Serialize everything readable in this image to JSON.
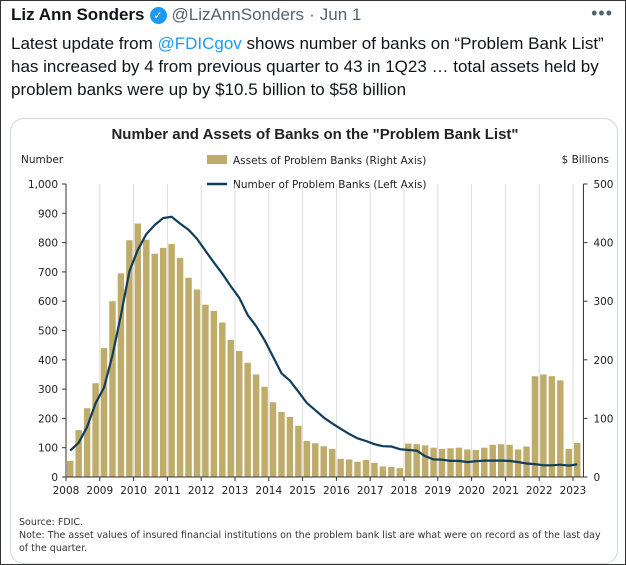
{
  "tweet": {
    "author_name": "Liz Ann Sonders",
    "verified_icon": "verified-badge-icon",
    "handle": "@LizAnnSonders",
    "separator": "·",
    "date": "Jun 1",
    "more_icon": "more-horizontal-icon",
    "text_before": "Latest update from ",
    "mention": "@FDICgov",
    "text_after": " shows number of banks on “Problem Bank List” has increased by 4 from previous quarter to 43 in 1Q23 … total assets held by problem banks were up by $10.5 billion to $58 billion"
  },
  "chart_data": {
    "type": "bar+line",
    "title": "Number and Assets of Banks on the \"Problem Bank List\"",
    "ylabel_left": "Number",
    "ylabel_right": "$ Billions",
    "ylim_left": [
      0,
      1000
    ],
    "ylim_right": [
      0,
      500
    ],
    "yticks_left": [
      "0",
      "100",
      "200",
      "300",
      "400",
      "500",
      "600",
      "700",
      "800",
      "900",
      "1,000"
    ],
    "yticks_right": [
      "0",
      "100",
      "200",
      "300",
      "400",
      "500"
    ],
    "xticks": [
      "2008",
      "2009",
      "2010",
      "2011",
      "2012",
      "2013",
      "2014",
      "2015",
      "2016",
      "2017",
      "2018",
      "2019",
      "2020",
      "2021",
      "2022",
      "2023"
    ],
    "frequency": "quarterly, 2008Q1–2023Q1",
    "grid": "vertical at years",
    "legend_position": "top",
    "colors": {
      "bars": "#bfab6a",
      "line": "#0f3d5a"
    },
    "series": [
      {
        "name": "Assets of Problem Banks (Right Axis)",
        "type": "bar",
        "axis": "right",
        "values": [
          27.5,
          80,
          117.5,
          160,
          220,
          300,
          347.5,
          404,
          432.5,
          405,
          381,
          391,
          397.5,
          374,
          340,
          320,
          294,
          283.5,
          263.5,
          234,
          215,
          195,
          175,
          154,
          127.5,
          111,
          102.5,
          87.5,
          61.5,
          57.5,
          52.5,
          48,
          31,
          30,
          26,
          29,
          24,
          18,
          17,
          15,
          57,
          56,
          54,
          50,
          48,
          49,
          50,
          47,
          46,
          50,
          55,
          56,
          55,
          47,
          52,
          172,
          175,
          172,
          165,
          48,
          58
        ]
      },
      {
        "name": "Number of Problem Banks (Left Axis)",
        "type": "line",
        "axis": "left",
        "values": [
          90,
          117,
          171,
          252,
          305,
          416,
          552,
          702,
          775,
          829,
          860,
          884,
          888,
          865,
          844,
          813,
          772,
          732,
          694,
          651,
          612,
          553,
          515,
          467,
          411,
          354,
          329,
          291,
          253,
          228,
          203,
          183,
          165,
          147,
          132,
          123,
          112,
          105,
          104,
          95,
          92,
          90,
          71,
          60,
          59,
          55,
          55,
          51,
          54,
          56,
          56,
          56,
          55,
          51,
          46,
          44,
          40,
          40,
          42,
          39,
          43
        ]
      }
    ],
    "source": "Source: FDIC.",
    "note": "Note: The asset values of insured financial institutions on the problem bank list are what were on record as of the last day of the quarter."
  }
}
